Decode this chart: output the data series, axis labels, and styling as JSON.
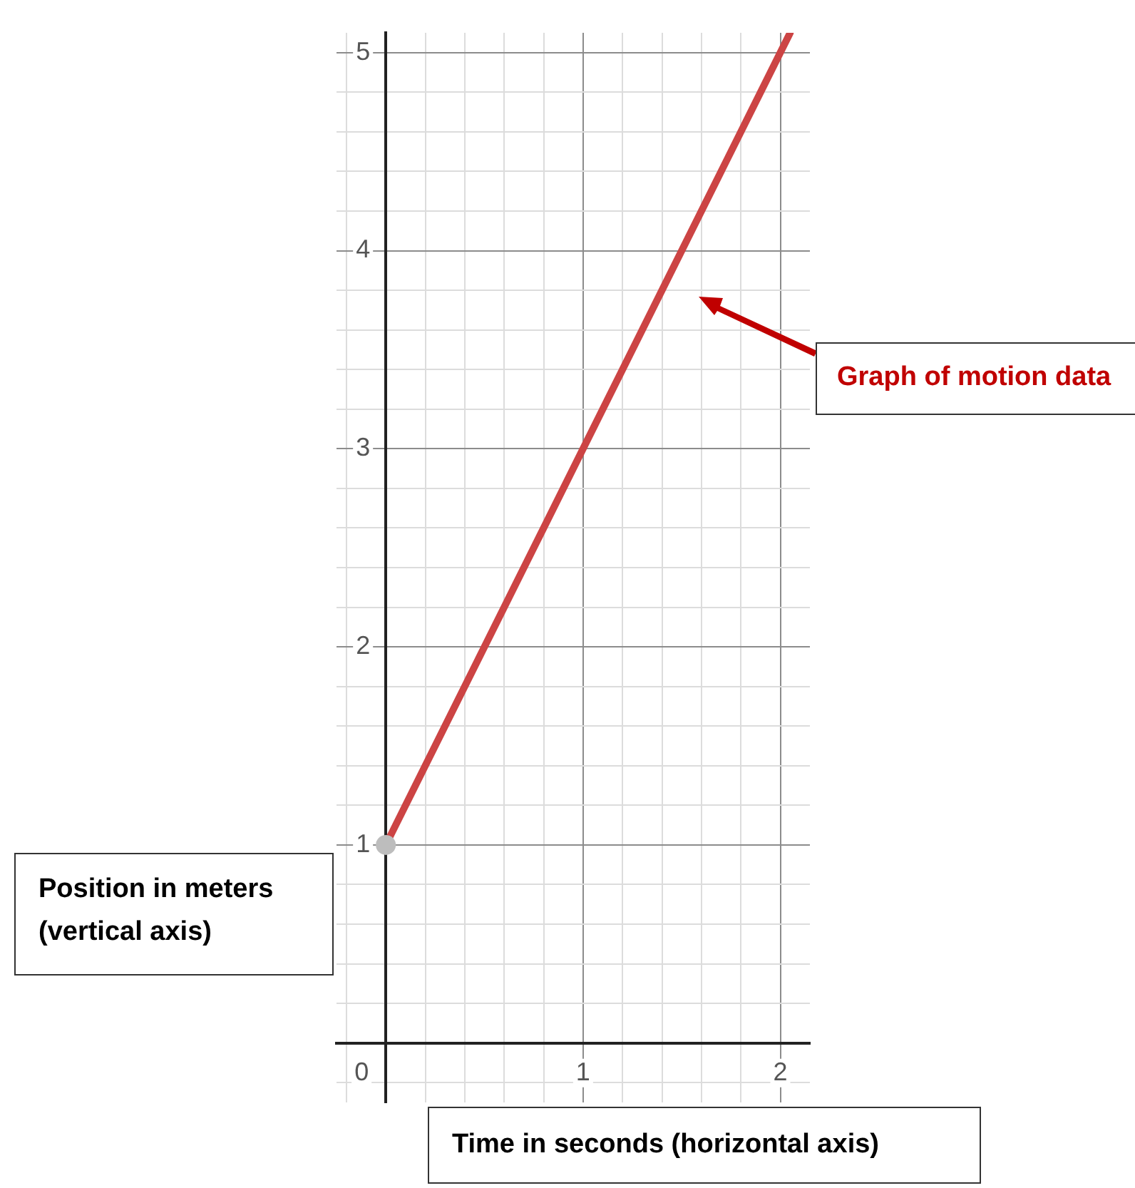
{
  "chart_data": {
    "type": "line",
    "xlabel": "Time in seconds (horizontal axis)",
    "ylabel": "Position in meters\n(vertical axis)",
    "annotations": [
      "Graph of motion data"
    ],
    "series": [
      {
        "type": "line",
        "color": "#cc4444",
        "x": [
          0,
          1,
          2,
          2.05
        ],
        "values": [
          1,
          3,
          5,
          5.1
        ],
        "marker": "none",
        "line_style": "solid"
      },
      {
        "type": "scatter",
        "color": "#bdbdbd",
        "x": [
          0
        ],
        "values": [
          1
        ],
        "marker": "circle"
      }
    ],
    "xlim": [
      -0.25,
      2.15
    ],
    "ylim": [
      -0.3,
      5.1
    ],
    "xticks": [
      {
        "value": -0.2,
        "label": null
      },
      0,
      {
        "value": 0.2,
        "label": null
      },
      {
        "value": 0.4,
        "label": null
      },
      {
        "value": 0.6,
        "label": null
      },
      {
        "value": 0.8,
        "label": null
      },
      1,
      {
        "value": 1.2,
        "label": null
      },
      {
        "value": 1.4,
        "label": null
      },
      {
        "value": 1.6,
        "label": null
      },
      {
        "value": 1.8,
        "label": null
      },
      2
    ],
    "yticks": [
      {
        "value": -0.2,
        "label": null
      },
      {
        "value": 0,
        "label": null
      },
      {
        "value": 0.2,
        "label": null
      },
      {
        "value": 0.4,
        "label": null
      },
      {
        "value": 0.6,
        "label": null
      },
      {
        "value": 0.8,
        "label": null
      },
      1,
      {
        "value": 1.2,
        "label": null
      },
      {
        "value": 1.4,
        "label": null
      },
      {
        "value": 1.6,
        "label": null
      },
      {
        "value": 1.8,
        "label": null
      },
      2,
      {
        "value": 2.2,
        "label": null
      },
      {
        "value": 2.4,
        "label": null
      },
      {
        "value": 2.6,
        "label": null
      },
      {
        "value": 2.8,
        "label": null
      },
      3,
      {
        "value": 3.2,
        "label": null
      },
      {
        "value": 3.4,
        "label": null
      },
      {
        "value": 3.6,
        "label": null
      },
      {
        "value": 3.8,
        "label": null
      },
      4,
      {
        "value": 4.2,
        "label": null
      },
      {
        "value": 4.4,
        "label": null
      },
      {
        "value": 4.6,
        "label": null
      },
      {
        "value": 4.8,
        "label": null
      },
      5
    ],
    "grid": true,
    "legend": false
  }
}
